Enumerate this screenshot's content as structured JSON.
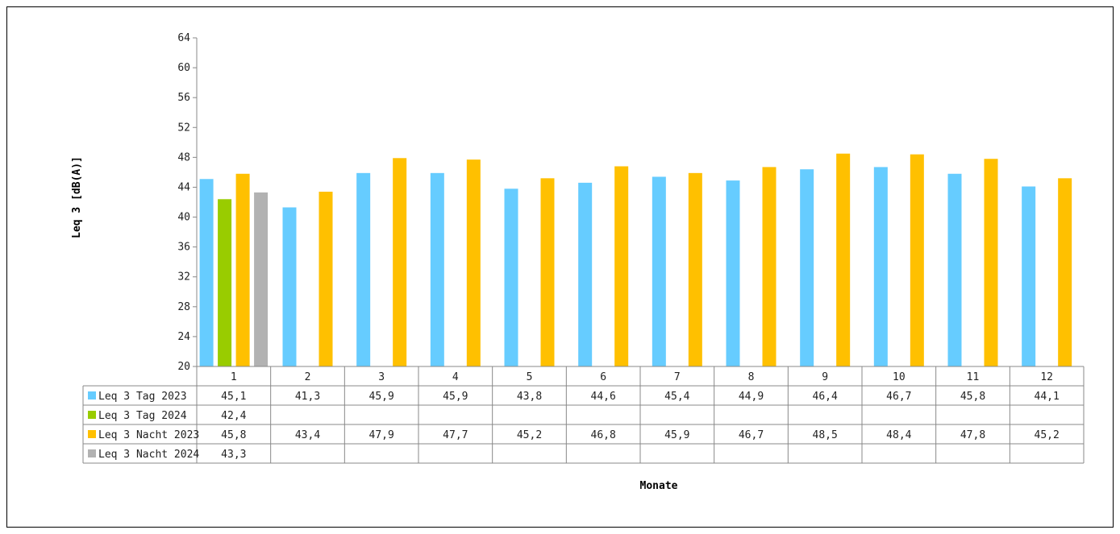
{
  "chart_data": {
    "type": "bar",
    "ylabel": "Leq 3 [dB(A)]",
    "xlabel": "Monate",
    "ylim": [
      20,
      64
    ],
    "yticks": [
      20,
      24,
      28,
      32,
      36,
      40,
      44,
      48,
      52,
      56,
      60,
      64
    ],
    "categories": [
      "1",
      "2",
      "3",
      "4",
      "5",
      "6",
      "7",
      "8",
      "9",
      "10",
      "11",
      "12"
    ],
    "grid": false,
    "legend": "data-table-left",
    "series": [
      {
        "name": "Leq 3 Tag 2023",
        "color": "#66ccff",
        "values": [
          45.1,
          41.3,
          45.9,
          45.9,
          43.8,
          44.6,
          45.4,
          44.9,
          46.4,
          46.7,
          45.8,
          44.1
        ],
        "labels": [
          "45,1",
          "41,3",
          "45,9",
          "45,9",
          "43,8",
          "44,6",
          "45,4",
          "44,9",
          "46,4",
          "46,7",
          "45,8",
          "44,1"
        ]
      },
      {
        "name": "Leq 3 Tag 2024",
        "color": "#99cc00",
        "values": [
          42.4,
          null,
          null,
          null,
          null,
          null,
          null,
          null,
          null,
          null,
          null,
          null
        ],
        "labels": [
          "42,4",
          "",
          "",
          "",
          "",
          "",
          "",
          "",
          "",
          "",
          "",
          ""
        ]
      },
      {
        "name": "Leq 3 Nacht 2023",
        "color": "#ffc000",
        "values": [
          45.8,
          43.4,
          47.9,
          47.7,
          45.2,
          46.8,
          45.9,
          46.7,
          48.5,
          48.4,
          47.8,
          45.2
        ],
        "labels": [
          "45,8",
          "43,4",
          "47,9",
          "47,7",
          "45,2",
          "46,8",
          "45,9",
          "46,7",
          "48,5",
          "48,4",
          "47,8",
          "45,2"
        ]
      },
      {
        "name": "Leq 3 Nacht 2024",
        "color": "#b2b2b2",
        "values": [
          43.3,
          null,
          null,
          null,
          null,
          null,
          null,
          null,
          null,
          null,
          null,
          null
        ],
        "labels": [
          "43,3",
          "",
          "",
          "",
          "",
          "",
          "",
          "",
          "",
          "",
          "",
          ""
        ]
      }
    ]
  }
}
